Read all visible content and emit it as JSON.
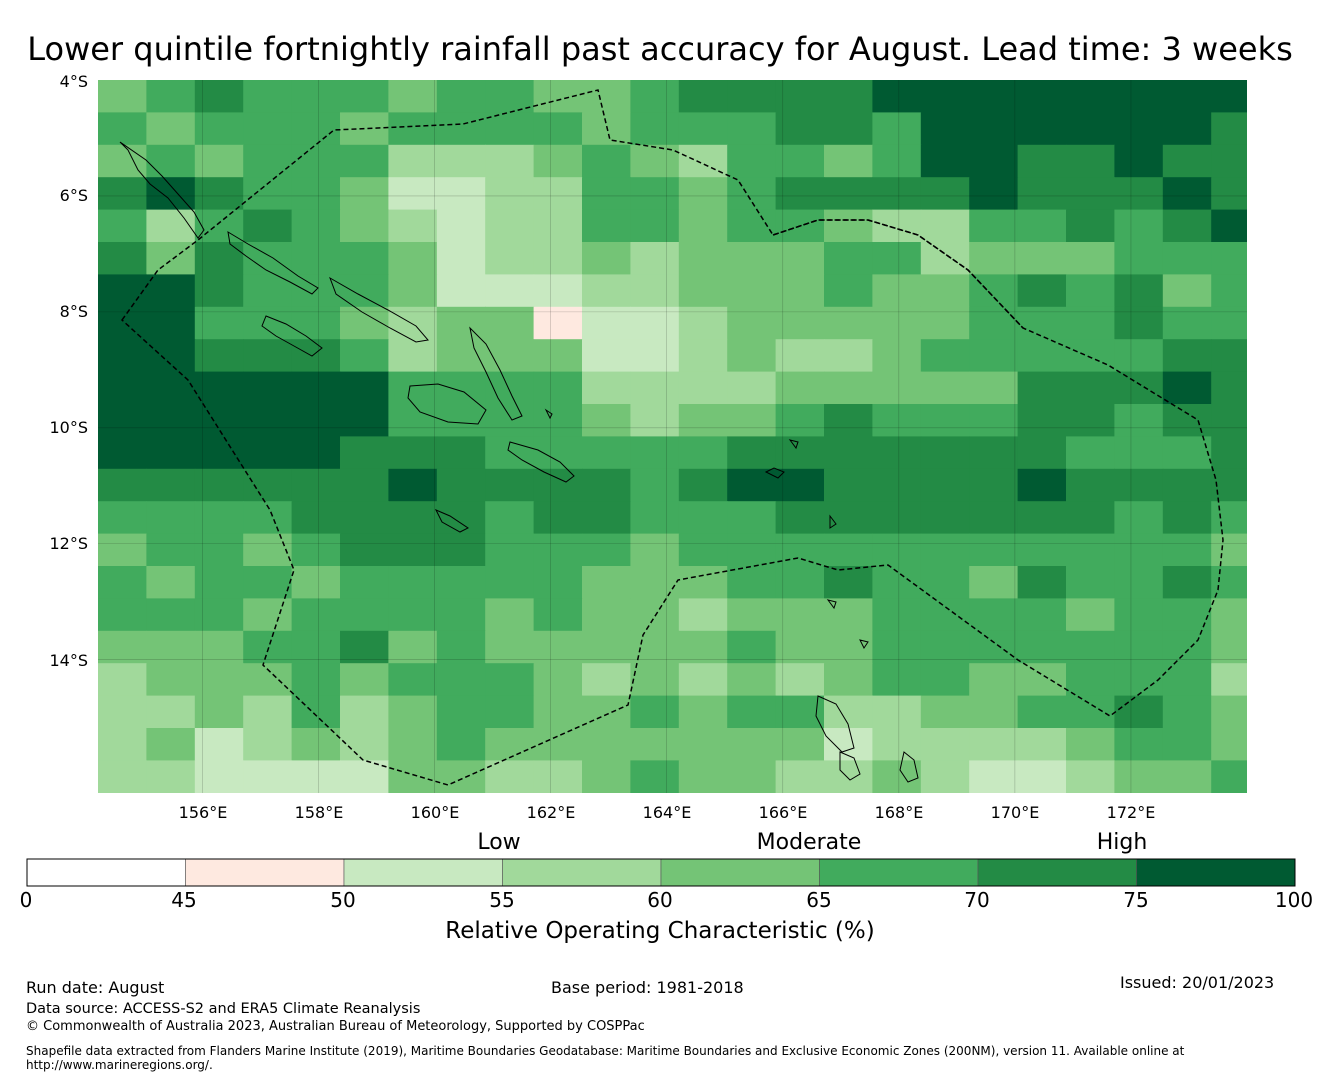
{
  "title": "Lower quintile fortnightly rainfall past accuracy for August. Lead time: 3 weeks",
  "map": {
    "lon_range": [
      154.2,
      174.0
    ],
    "lat_range": [
      -4.0,
      -16.3
    ],
    "cell_size_deg": 0.84,
    "lat_ticks": [
      "4°S",
      "6°S",
      "8°S",
      "10°S",
      "12°S",
      "14°S"
    ],
    "lon_ticks": [
      "156°E",
      "158°E",
      "160°E",
      "162°E",
      "164°E",
      "166°E",
      "168°E",
      "170°E",
      "172°E"
    ],
    "grid_legend_index_note": "cells hold colour-bin indices 0..7 matching colorbar.colors",
    "cells": [
      [
        4,
        5,
        6,
        5,
        5,
        5,
        4,
        5,
        5,
        4,
        4,
        5,
        6,
        6,
        6,
        6,
        7,
        7,
        7,
        7,
        7,
        7,
        7,
        7
      ],
      [
        5,
        4,
        5,
        5,
        5,
        4,
        5,
        5,
        5,
        5,
        4,
        5,
        5,
        5,
        6,
        6,
        5,
        7,
        7,
        7,
        7,
        7,
        7,
        6
      ],
      [
        4,
        5,
        4,
        5,
        5,
        5,
        3,
        3,
        3,
        4,
        5,
        4,
        3,
        5,
        5,
        4,
        5,
        7,
        7,
        6,
        6,
        7,
        6,
        6
      ],
      [
        6,
        7,
        6,
        5,
        5,
        4,
        2,
        2,
        3,
        3,
        5,
        5,
        4,
        5,
        6,
        6,
        6,
        6,
        7,
        6,
        6,
        6,
        7,
        6
      ],
      [
        5,
        3,
        5,
        6,
        5,
        4,
        3,
        2,
        3,
        3,
        5,
        5,
        4,
        5,
        5,
        4,
        3,
        3,
        5,
        5,
        6,
        5,
        6,
        7
      ],
      [
        6,
        4,
        6,
        5,
        5,
        5,
        4,
        2,
        3,
        3,
        4,
        3,
        4,
        4,
        4,
        5,
        5,
        3,
        4,
        4,
        4,
        5,
        5,
        5
      ],
      [
        7,
        7,
        6,
        5,
        5,
        5,
        4,
        2,
        2,
        2,
        3,
        3,
        4,
        4,
        4,
        5,
        4,
        4,
        5,
        6,
        5,
        6,
        4,
        5
      ],
      [
        7,
        7,
        5,
        5,
        5,
        4,
        3,
        4,
        4,
        1,
        2,
        2,
        3,
        4,
        4,
        4,
        4,
        4,
        5,
        5,
        5,
        6,
        5,
        5
      ],
      [
        7,
        7,
        6,
        6,
        6,
        5,
        3,
        4,
        4,
        4,
        2,
        2,
        3,
        4,
        3,
        3,
        4,
        5,
        5,
        5,
        5,
        5,
        6,
        6
      ],
      [
        7,
        7,
        7,
        7,
        7,
        7,
        5,
        5,
        5,
        5,
        3,
        3,
        3,
        3,
        4,
        4,
        4,
        4,
        4,
        6,
        6,
        6,
        7,
        6
      ],
      [
        7,
        7,
        7,
        7,
        7,
        7,
        5,
        5,
        5,
        5,
        4,
        3,
        4,
        4,
        5,
        6,
        5,
        5,
        5,
        6,
        6,
        5,
        6,
        6
      ],
      [
        7,
        7,
        7,
        7,
        7,
        6,
        6,
        6,
        5,
        5,
        5,
        5,
        5,
        6,
        6,
        6,
        6,
        6,
        6,
        6,
        5,
        5,
        5,
        6
      ],
      [
        6,
        6,
        6,
        6,
        6,
        6,
        7,
        6,
        6,
        6,
        6,
        5,
        6,
        7,
        7,
        6,
        6,
        6,
        6,
        7,
        6,
        6,
        6,
        6
      ],
      [
        5,
        5,
        5,
        5,
        6,
        6,
        6,
        6,
        5,
        6,
        6,
        5,
        5,
        5,
        6,
        6,
        6,
        6,
        6,
        6,
        6,
        5,
        6,
        5
      ],
      [
        4,
        5,
        5,
        4,
        5,
        6,
        6,
        6,
        5,
        5,
        5,
        4,
        5,
        5,
        5,
        5,
        5,
        5,
        5,
        5,
        5,
        5,
        5,
        4
      ],
      [
        5,
        4,
        5,
        5,
        4,
        5,
        5,
        5,
        5,
        5,
        4,
        4,
        4,
        5,
        5,
        6,
        5,
        5,
        4,
        6,
        5,
        5,
        6,
        5
      ],
      [
        5,
        5,
        5,
        4,
        5,
        5,
        5,
        5,
        4,
        5,
        4,
        4,
        3,
        4,
        4,
        4,
        5,
        5,
        5,
        5,
        4,
        5,
        5,
        4
      ],
      [
        4,
        4,
        4,
        5,
        5,
        6,
        4,
        5,
        4,
        4,
        4,
        4,
        4,
        5,
        4,
        4,
        5,
        5,
        5,
        5,
        5,
        5,
        5,
        4
      ],
      [
        3,
        4,
        4,
        4,
        5,
        4,
        5,
        5,
        5,
        4,
        3,
        4,
        3,
        4,
        3,
        4,
        5,
        5,
        4,
        4,
        5,
        5,
        5,
        3
      ],
      [
        3,
        3,
        4,
        3,
        5,
        3,
        4,
        5,
        5,
        4,
        4,
        5,
        4,
        5,
        5,
        3,
        3,
        4,
        4,
        5,
        5,
        6,
        5,
        4
      ],
      [
        3,
        4,
        2,
        3,
        4,
        3,
        4,
        5,
        4,
        4,
        4,
        4,
        4,
        4,
        4,
        2,
        3,
        3,
        3,
        3,
        4,
        5,
        5,
        4
      ],
      [
        3,
        3,
        2,
        2,
        2,
        2,
        4,
        4,
        3,
        3,
        4,
        5,
        4,
        4,
        3,
        3,
        4,
        3,
        2,
        2,
        3,
        4,
        4,
        5
      ]
    ],
    "boundary_color": "#000000"
  },
  "colorbar": {
    "bounds": [
      0,
      45,
      50,
      55,
      60,
      65,
      70,
      75,
      100
    ],
    "tick_labels": [
      "0",
      "45",
      "50",
      "55",
      "60",
      "65",
      "70",
      "75",
      "100"
    ],
    "colors": [
      "#ffffff",
      "#fee9e0",
      "#c8e9c1",
      "#a1d99b",
      "#74c476",
      "#41ab5d",
      "#238b45",
      "#005a32"
    ],
    "category_labels": [
      "Low",
      "Moderate",
      "High"
    ],
    "title": "Relative Operating Characteristic (%)"
  },
  "footer": {
    "run_date": "Run date: August",
    "base_period": "Base period: 1981-2018",
    "issued": "Issued: 20/01/2023",
    "data_source": "Data source: ACCESS-S2 and ERA5 Climate Reanalysis",
    "copyright": "© Commonwealth of Australia 2023, Australian Bureau of Meteorology, Supported by COSPPac",
    "shapefile_line1": "Shapefile data extracted from Flanders Marine Institute (2019), Maritime Boundaries Geodatabase: Maritime Boundaries and Exclusive Economic Zones (200NM), version 11. Available online at",
    "shapefile_line2": "http://www.marineregions.org/."
  }
}
